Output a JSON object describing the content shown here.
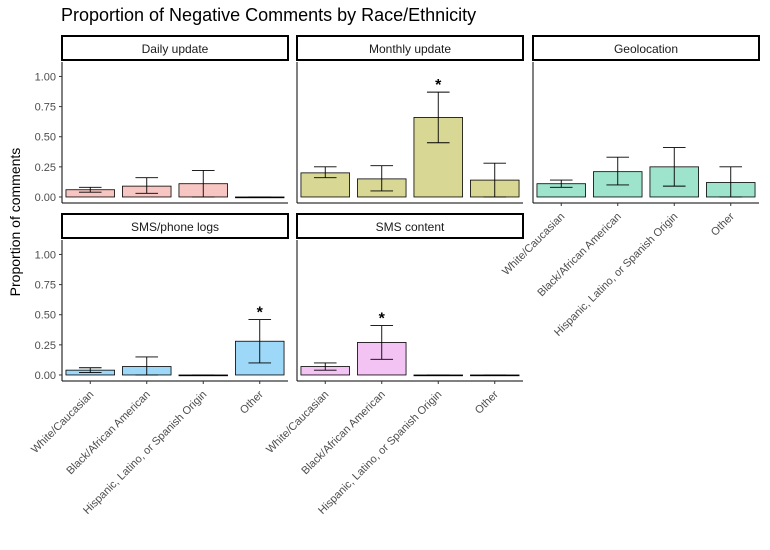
{
  "chart_data": {
    "type": "bar",
    "title": "Proportion of Negative Comments by Race/Ethnicity",
    "ylabel": "Proportion of comments",
    "xlabel": "",
    "ylim": [
      -0.05,
      1.12
    ],
    "yticks": [
      "0.00",
      "0.25",
      "0.50",
      "0.75",
      "1.00"
    ],
    "categories": [
      "White/Caucasian",
      "Black/African American",
      "Hispanic, Latino, or Spanish Origin",
      "Other"
    ],
    "significance_marker": "*",
    "panels": [
      {
        "name": "Daily update",
        "color": "#f8c6c2",
        "values": [
          0.06,
          0.09,
          0.11,
          0.0
        ],
        "ci_low": [
          0.04,
          0.03,
          0.0,
          0.0
        ],
        "ci_high": [
          0.08,
          0.16,
          0.22,
          0.0
        ],
        "significant": [
          false,
          false,
          false,
          false
        ]
      },
      {
        "name": "Monthly update",
        "color": "#d8d894",
        "values": [
          0.2,
          0.15,
          0.66,
          0.14
        ],
        "ci_low": [
          0.16,
          0.05,
          0.45,
          0.0
        ],
        "ci_high": [
          0.25,
          0.26,
          0.87,
          0.28
        ],
        "significant": [
          false,
          false,
          true,
          false
        ]
      },
      {
        "name": "Geolocation",
        "color": "#9ee3cc",
        "values": [
          0.11,
          0.21,
          0.25,
          0.12
        ],
        "ci_low": [
          0.08,
          0.1,
          0.09,
          0.0
        ],
        "ci_high": [
          0.14,
          0.33,
          0.41,
          0.25
        ],
        "significant": [
          false,
          false,
          false,
          false
        ]
      },
      {
        "name": "SMS/phone logs",
        "color": "#9ed8f8",
        "values": [
          0.04,
          0.07,
          0.0,
          0.28
        ],
        "ci_low": [
          0.02,
          0.0,
          0.0,
          0.1
        ],
        "ci_high": [
          0.06,
          0.15,
          0.0,
          0.46
        ],
        "significant": [
          false,
          false,
          false,
          true
        ]
      },
      {
        "name": "SMS content",
        "color": "#f3c3f3",
        "values": [
          0.07,
          0.27,
          0.0,
          0.0
        ],
        "ci_low": [
          0.04,
          0.13,
          0.0,
          0.0
        ],
        "ci_high": [
          0.1,
          0.41,
          0.0,
          0.0
        ],
        "significant": [
          false,
          true,
          false,
          false
        ]
      }
    ]
  }
}
